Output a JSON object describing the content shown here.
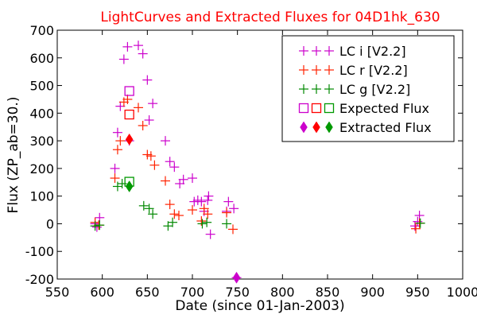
{
  "chart_data": {
    "type": "scatter",
    "title": "LightCurves and Extracted Fluxes for 04D1hk_630",
    "xlabel": "Date (since 01-Jan-2003)",
    "ylabel": "Flux (ZP_ab=30.)",
    "xlim": [
      550,
      1000
    ],
    "ylim": [
      -200,
      700
    ],
    "xticks": [
      550,
      600,
      650,
      700,
      750,
      800,
      850,
      900,
      950,
      1000
    ],
    "yticks": [
      -200,
      -100,
      0,
      100,
      200,
      300,
      400,
      500,
      600,
      700
    ],
    "grid": false,
    "legend_position": "top-right",
    "series": [
      {
        "name": "LC i [V2.2]",
        "marker": "plus",
        "color": "#cc00cc",
        "points": [
          [
            592,
            0
          ],
          [
            594,
            -12
          ],
          [
            597,
            22
          ],
          [
            614,
            200
          ],
          [
            617,
            330
          ],
          [
            620,
            425
          ],
          [
            624,
            595
          ],
          [
            628,
            640
          ],
          [
            630,
            300
          ],
          [
            640,
            645
          ],
          [
            645,
            615
          ],
          [
            650,
            520
          ],
          [
            652,
            375
          ],
          [
            656,
            435
          ],
          [
            670,
            300
          ],
          [
            675,
            225
          ],
          [
            680,
            205
          ],
          [
            686,
            145
          ],
          [
            690,
            160
          ],
          [
            700,
            165
          ],
          [
            702,
            80
          ],
          [
            706,
            85
          ],
          [
            710,
            80
          ],
          [
            713,
            45
          ],
          [
            717,
            85
          ],
          [
            718,
            100
          ],
          [
            720,
            -38
          ],
          [
            738,
            45
          ],
          [
            740,
            80
          ],
          [
            746,
            55
          ],
          [
            749,
            -195
          ],
          [
            947,
            -8
          ],
          [
            950,
            8
          ],
          [
            952,
            30
          ]
        ]
      },
      {
        "name": "LC r [V2.2]",
        "marker": "plus",
        "color": "#ff2200",
        "points": [
          [
            592,
            5
          ],
          [
            596,
            -5
          ],
          [
            614,
            165
          ],
          [
            617,
            268
          ],
          [
            620,
            300
          ],
          [
            624,
            440
          ],
          [
            628,
            450
          ],
          [
            640,
            420
          ],
          [
            645,
            355
          ],
          [
            650,
            250
          ],
          [
            654,
            245
          ],
          [
            658,
            212
          ],
          [
            670,
            155
          ],
          [
            675,
            70
          ],
          [
            680,
            35
          ],
          [
            685,
            30
          ],
          [
            700,
            50
          ],
          [
            710,
            10
          ],
          [
            713,
            55
          ],
          [
            717,
            35
          ],
          [
            738,
            40
          ],
          [
            745,
            -20
          ],
          [
            948,
            -18
          ],
          [
            952,
            2
          ]
        ]
      },
      {
        "name": "LC g [V2.2]",
        "marker": "plus",
        "color": "#008800",
        "points": [
          [
            592,
            -8
          ],
          [
            597,
            -5
          ],
          [
            617,
            135
          ],
          [
            622,
            145
          ],
          [
            646,
            65
          ],
          [
            652,
            55
          ],
          [
            656,
            35
          ],
          [
            673,
            -8
          ],
          [
            678,
            5
          ],
          [
            711,
            0
          ],
          [
            716,
            5
          ],
          [
            738,
            0
          ],
          [
            953,
            2
          ]
        ]
      },
      {
        "name": "Expected Flux",
        "marker": "square",
        "colors": [
          "#cc00cc",
          "#ff0000",
          "#009900"
        ],
        "points": [
          [
            630,
            480
          ],
          [
            630,
            395
          ],
          [
            630,
            152
          ]
        ]
      },
      {
        "name": "Extracted Flux",
        "marker": "diamond",
        "colors": [
          "#cc00cc",
          "#ff0000",
          "#009900"
        ],
        "points": [
          [
            749,
            -195
          ],
          [
            630,
            305
          ],
          [
            630,
            135
          ]
        ]
      }
    ]
  }
}
